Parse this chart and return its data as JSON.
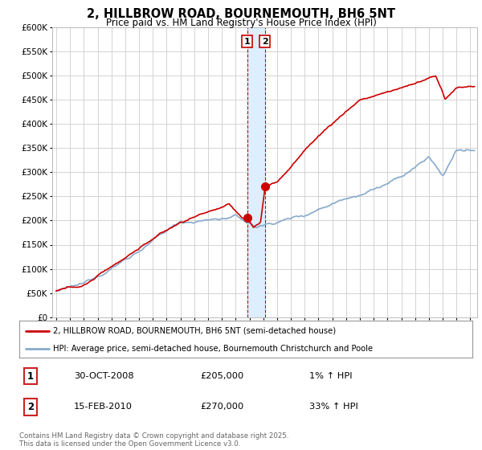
{
  "title": "2, HILLBROW ROAD, BOURNEMOUTH, BH6 5NT",
  "subtitle": "Price paid vs. HM Land Registry's House Price Index (HPI)",
  "legend_property": "2, HILLBROW ROAD, BOURNEMOUTH, BH6 5NT (semi-detached house)",
  "legend_hpi": "HPI: Average price, semi-detached house, Bournemouth Christchurch and Poole",
  "copyright": "Contains HM Land Registry data © Crown copyright and database right 2025.\nThis data is licensed under the Open Government Licence v3.0.",
  "sale1_date": "30-OCT-2008",
  "sale1_price": "£205,000",
  "sale1_hpi": "1% ↑ HPI",
  "sale2_date": "15-FEB-2010",
  "sale2_price": "£270,000",
  "sale2_hpi": "33% ↑ HPI",
  "sale1_year": 2008.83,
  "sale1_value": 205000,
  "sale2_year": 2010.12,
  "sale2_value": 270000,
  "ylim": [
    0,
    600000
  ],
  "xlim": [
    1994.7,
    2025.5
  ],
  "property_color": "#cc0000",
  "hpi_color": "#88aacc",
  "shade_color": "#ddeeff",
  "vline_color": "#cc0000",
  "background_color": "#ffffff",
  "grid_color": "#cccccc"
}
